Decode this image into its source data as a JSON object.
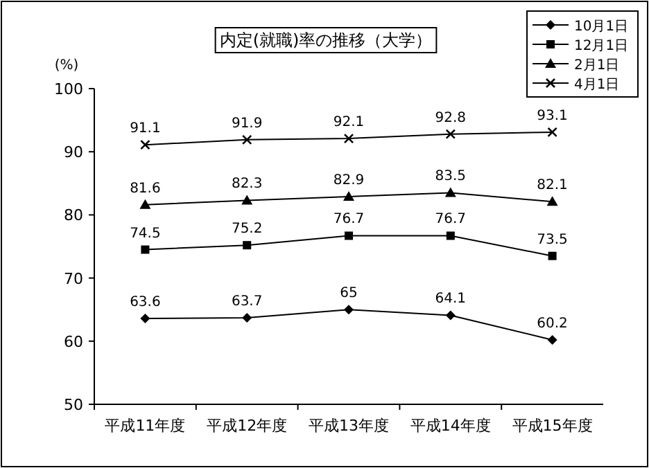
{
  "chart_data": {
    "type": "line",
    "title": "内定(就職)率の推移（大学）",
    "ylabel": "(%)",
    "categories": [
      "平成11年度",
      "平成12年度",
      "平成13年度",
      "平成14年度",
      "平成15年度"
    ],
    "series": [
      {
        "name": "10月1日",
        "color": "#000000",
        "marker": "diamond",
        "values": [
          63.6,
          63.7,
          65,
          64.1,
          60.2
        ]
      },
      {
        "name": "12月1日",
        "color": "#000000",
        "marker": "square",
        "values": [
          74.5,
          75.2,
          76.7,
          76.7,
          73.5
        ]
      },
      {
        "name": "2月1日",
        "color": "#000000",
        "marker": "triangle",
        "values": [
          81.6,
          82.3,
          82.9,
          83.5,
          82.1
        ]
      },
      {
        "name": "4月1日",
        "color": "#000000",
        "marker": "cross",
        "values": [
          91.1,
          91.9,
          92.1,
          92.8,
          93.1
        ]
      }
    ],
    "ylim": [
      50,
      100
    ],
    "yticks": [
      50,
      60,
      70,
      80,
      90,
      100
    ],
    "grid": false,
    "legend": "top right",
    "data_labels": true
  }
}
